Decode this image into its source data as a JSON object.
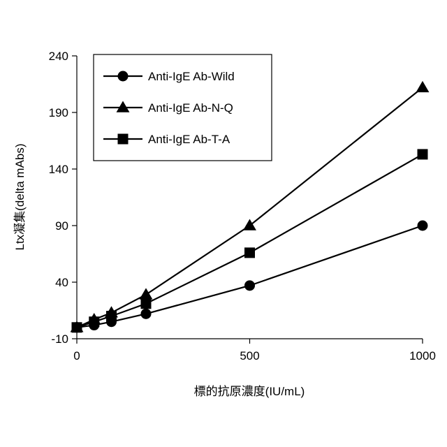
{
  "chart_data": {
    "type": "line",
    "title": "",
    "xlabel": "標的抗原濃度(IU/mL)",
    "ylabel": "Ltx凝集(delta mAbs)",
    "xlim": [
      0,
      1000
    ],
    "ylim": [
      -10,
      240
    ],
    "xticks": [
      "0",
      "500",
      "1000"
    ],
    "yticks": [
      "-10",
      "40",
      "90",
      "140",
      "190",
      "240"
    ],
    "grid": false,
    "legend_position": "top-left",
    "series": [
      {
        "name": "Anti-IgE Ab-Wild",
        "marker": "circle",
        "points": [
          [
            0,
            0
          ],
          [
            50,
            2
          ],
          [
            100,
            5
          ],
          [
            200,
            12
          ],
          [
            500,
            37
          ],
          [
            1000,
            90
          ]
        ]
      },
      {
        "name": "Anti-IgE Ab-N-Q",
        "marker": "triangle",
        "points": [
          [
            0,
            0
          ],
          [
            50,
            7
          ],
          [
            100,
            13
          ],
          [
            200,
            29
          ],
          [
            500,
            90
          ],
          [
            1000,
            212
          ]
        ]
      },
      {
        "name": "Anti-IgE Ab-T-A",
        "marker": "square",
        "points": [
          [
            0,
            0
          ],
          [
            50,
            5
          ],
          [
            100,
            10
          ],
          [
            200,
            21
          ],
          [
            500,
            66
          ],
          [
            1000,
            153
          ]
        ]
      }
    ]
  }
}
